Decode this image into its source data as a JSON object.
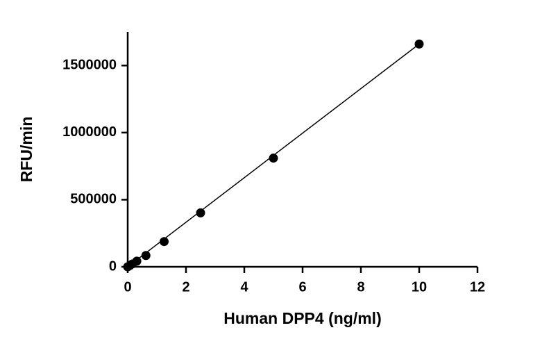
{
  "chart_data": {
    "type": "scatter",
    "x_label": "Human DPP4 (ng/ml)",
    "y_label": "RFU/min",
    "xlim": [
      0,
      12
    ],
    "xticks": [
      0,
      2,
      4,
      6,
      8,
      10,
      12
    ],
    "ylim": [
      0,
      1750000
    ],
    "yticks": [
      0,
      500000,
      1000000,
      1500000
    ],
    "series": [
      {
        "mode": "markers",
        "color": "#000000",
        "x": [
          0,
          0.078,
          0.156,
          0.3125,
          0.625,
          1.25,
          2.5,
          5,
          10
        ],
        "values": [
          0,
          10000,
          21000,
          42000,
          84000,
          188000,
          402000,
          810000,
          1660000
        ]
      },
      {
        "mode": "line",
        "color": "#000000",
        "x": [
          0,
          10
        ],
        "values": [
          0,
          1660000
        ]
      }
    ]
  }
}
